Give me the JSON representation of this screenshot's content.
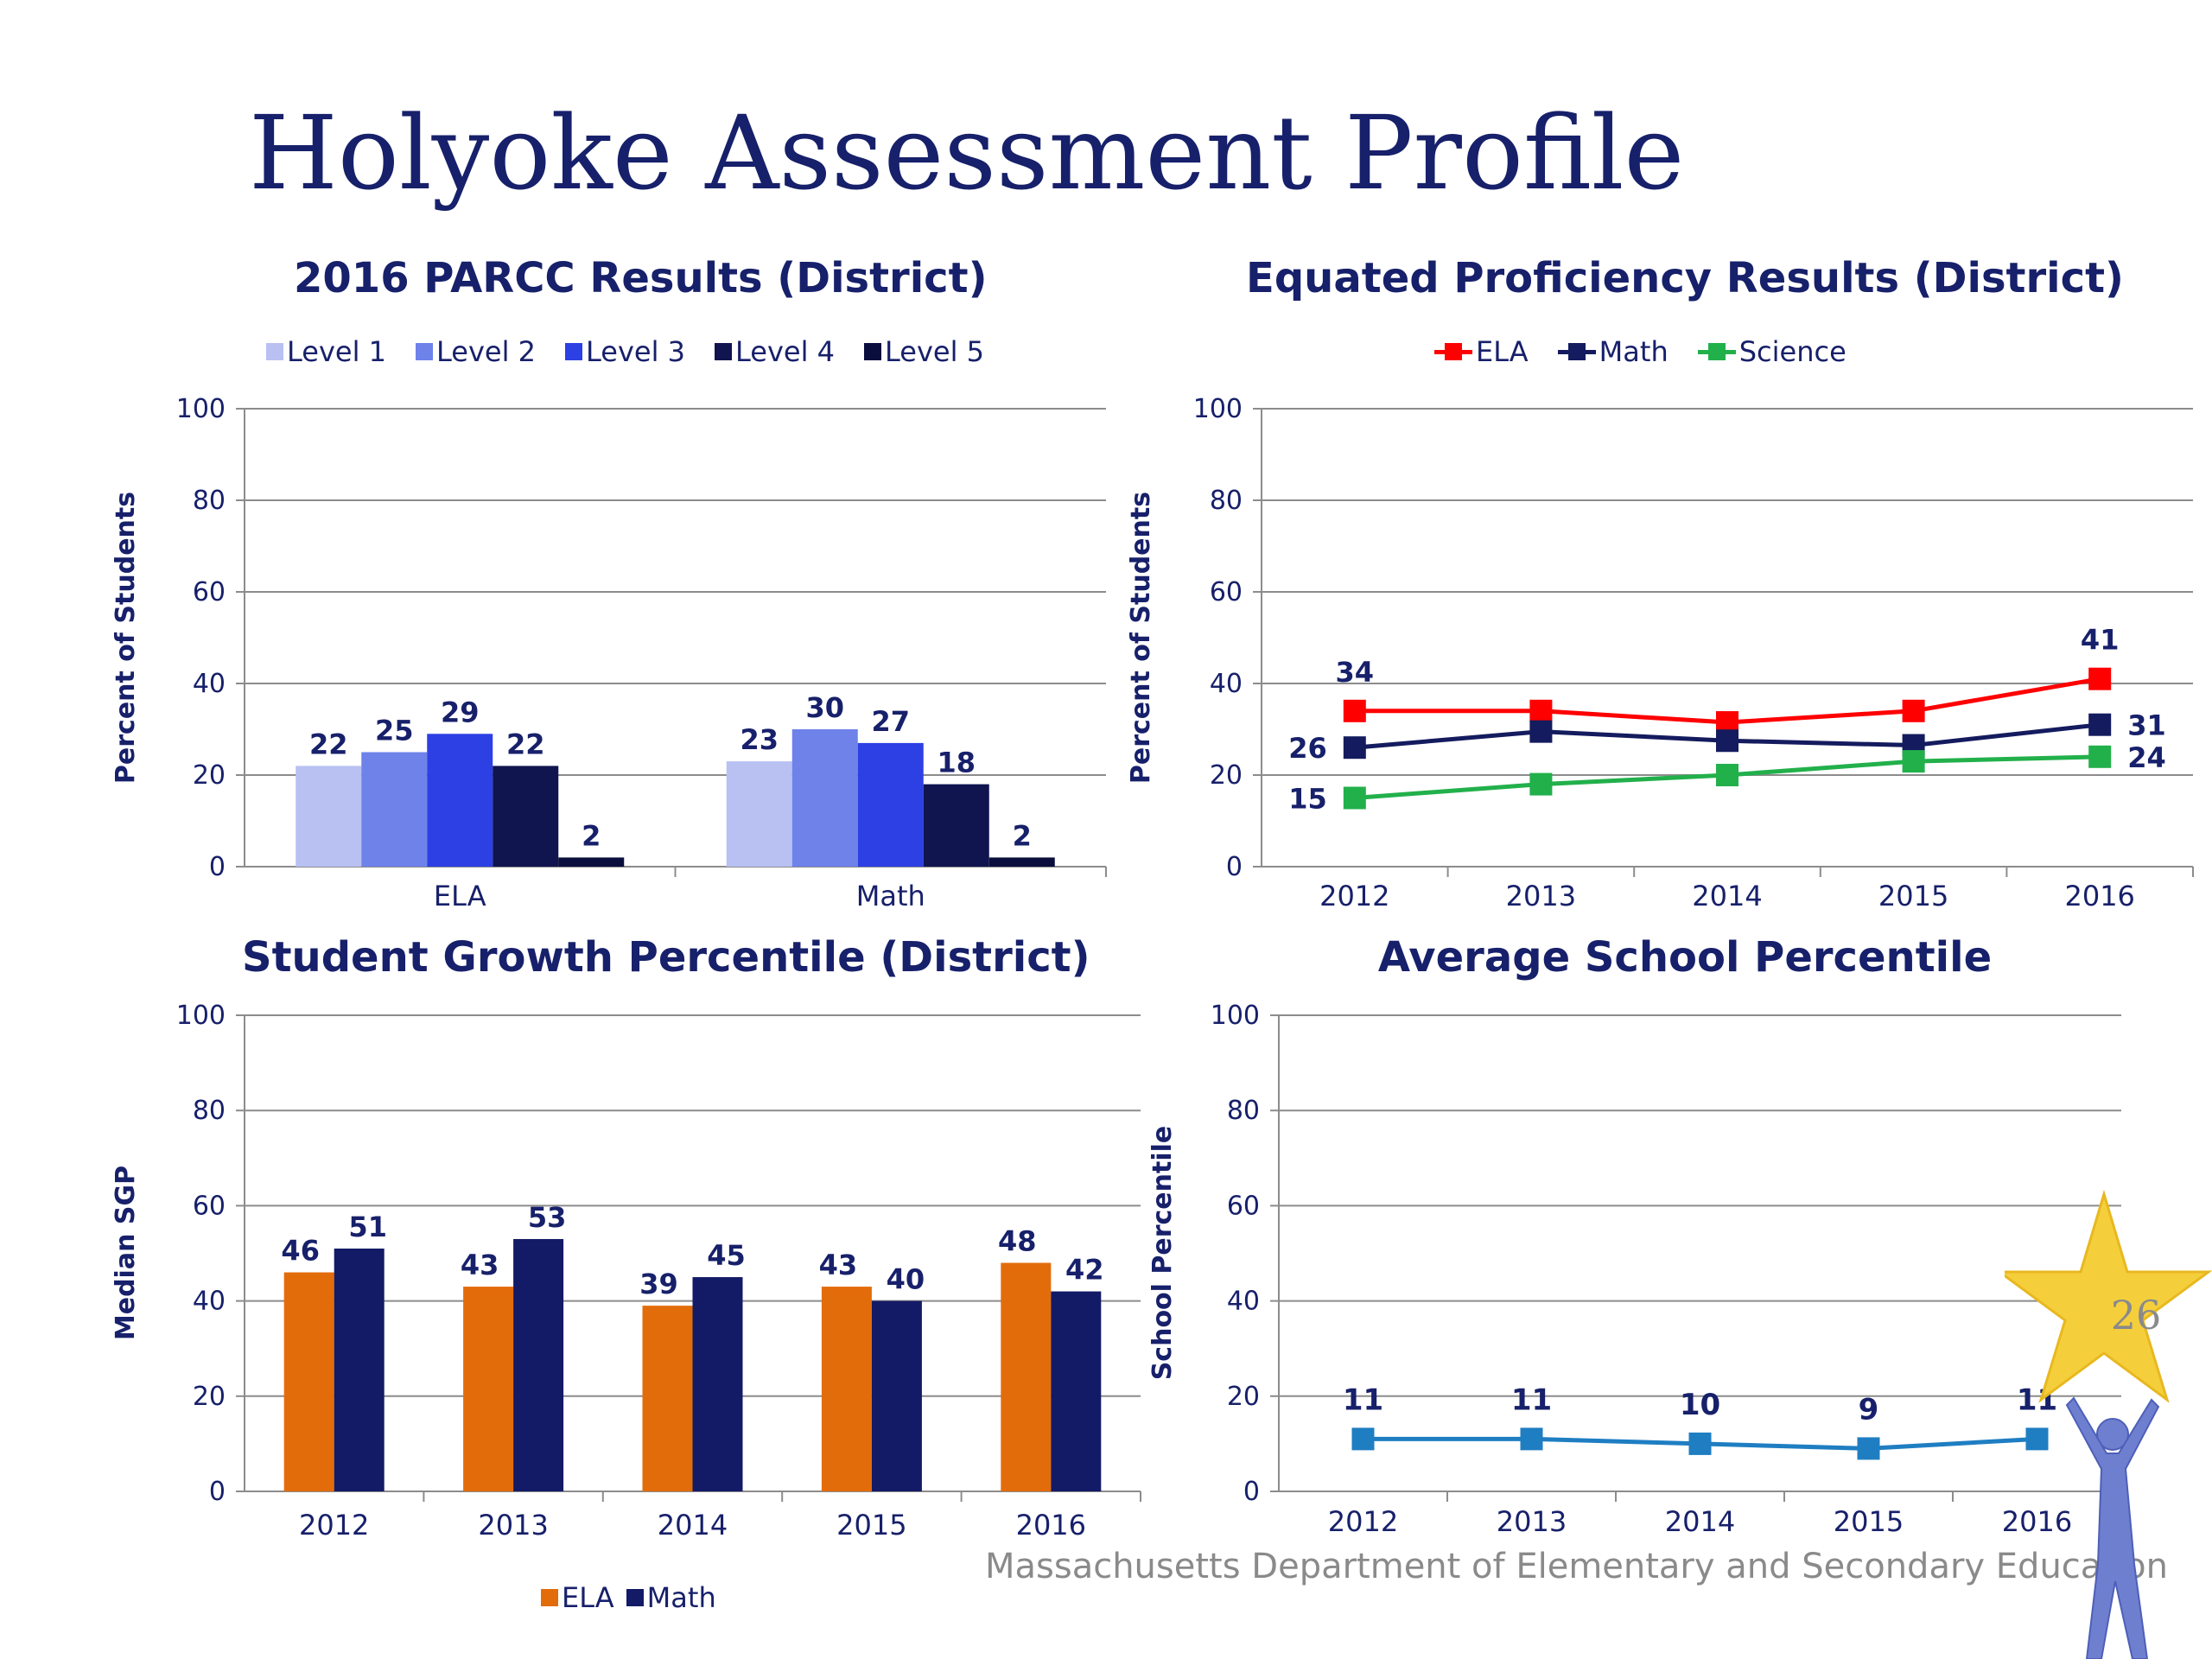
{
  "slide": {
    "title": "Holyoke Assessment Profile",
    "footer": "Massachusetts Department of Elementary and Secondary Education",
    "page_number": "26"
  },
  "colors": {
    "title": "#17206a",
    "level1": "#b8c1f2",
    "level2": "#6e82ea",
    "level3": "#2c40e3",
    "level4": "#10144f",
    "level5": "#0a0e3c",
    "ela_line": "#ff0000",
    "math_line": "#141b5e",
    "science_line": "#22b04b",
    "sgp_ela": "#e36c0a",
    "sgp_math": "#131a66",
    "percentile_line": "#1f7ec2",
    "grid": "#8c8c8c"
  },
  "chart_data": [
    {
      "type": "bar",
      "title": "2016 PARCC Results (District)",
      "ylabel": "Percent of Students",
      "xlabel": "",
      "categories": [
        "ELA",
        "Math"
      ],
      "series": [
        {
          "name": "Level 1",
          "values": [
            22,
            23
          ]
        },
        {
          "name": "Level 2",
          "values": [
            25,
            30
          ]
        },
        {
          "name": "Level 3",
          "values": [
            29,
            27
          ]
        },
        {
          "name": "Level 4",
          "values": [
            22,
            18
          ]
        },
        {
          "name": "Level 5",
          "values": [
            2,
            2
          ]
        }
      ],
      "ylim": [
        0,
        100
      ],
      "yticks": [
        0,
        20,
        40,
        60,
        80,
        100
      ],
      "grid": true,
      "legend": "top"
    },
    {
      "type": "line",
      "title": "Equated Proficiency Results (District)",
      "ylabel": "Percent of Students",
      "xlabel": "",
      "x": [
        "2012",
        "2013",
        "2014",
        "2015",
        "2016"
      ],
      "series": [
        {
          "name": "ELA",
          "values": [
            34,
            34,
            31.5,
            34,
            41
          ]
        },
        {
          "name": "Math",
          "values": [
            26,
            29.5,
            27.5,
            26.5,
            31
          ]
        },
        {
          "name": "Science",
          "values": [
            15,
            18,
            20,
            23,
            24
          ]
        }
      ],
      "data_labels": [
        {
          "series": "ELA",
          "index": 0,
          "text": "34"
        },
        {
          "series": "ELA",
          "index": 4,
          "text": "41"
        },
        {
          "series": "Math",
          "index": 0,
          "text": "26"
        },
        {
          "series": "Math",
          "index": 4,
          "text": "31"
        },
        {
          "series": "Science",
          "index": 0,
          "text": "15"
        },
        {
          "series": "Science",
          "index": 4,
          "text": "24"
        }
      ],
      "ylim": [
        0,
        100
      ],
      "yticks": [
        0,
        20,
        40,
        60,
        80,
        100
      ],
      "grid": true,
      "legend": "top"
    },
    {
      "type": "bar",
      "title": "Student Growth Percentile (District)",
      "ylabel": "Median SGP",
      "xlabel": "",
      "categories": [
        "2012",
        "2013",
        "2014",
        "2015",
        "2016"
      ],
      "series": [
        {
          "name": "ELA",
          "values": [
            46,
            43,
            39,
            43,
            48
          ]
        },
        {
          "name": "Math",
          "values": [
            51,
            53,
            45,
            40,
            42
          ]
        }
      ],
      "ylim": [
        0,
        100
      ],
      "yticks": [
        0,
        20,
        40,
        60,
        80,
        100
      ],
      "grid": true,
      "legend": "bottom"
    },
    {
      "type": "line",
      "title": "Average School Percentile",
      "ylabel": "School Percentile",
      "xlabel": "",
      "x": [
        "2012",
        "2013",
        "2014",
        "2015",
        "2016"
      ],
      "series": [
        {
          "values": [
            11,
            11,
            10,
            9,
            11
          ]
        }
      ],
      "ylim": [
        0,
        100
      ],
      "yticks": [
        0,
        20,
        40,
        60,
        80,
        100
      ],
      "grid": true,
      "legend": "none"
    }
  ]
}
